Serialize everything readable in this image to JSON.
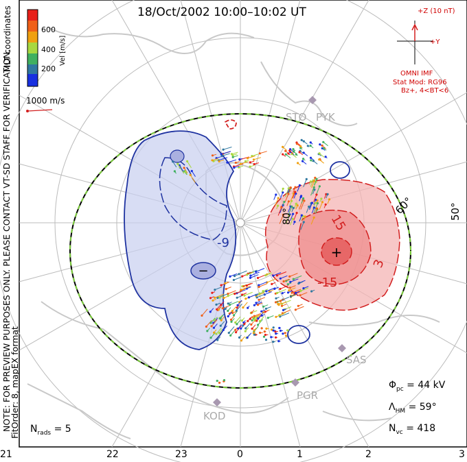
{
  "title": "18/Oct/2002 10:00–10:02 UT",
  "coord_label": "MLT coordinates",
  "colorbar": {
    "label": "Vel [m/s]",
    "ticks": [
      "600",
      "400",
      "200"
    ],
    "colors": [
      "#e8201a",
      "#f08010",
      "#f0c010",
      "#90d040",
      "#30a050",
      "#3070b0",
      "#1830e0"
    ]
  },
  "vector_scale": "1000 m/s",
  "notes": {
    "preview": "NOTE: FOR PREVIEW PURPOSES ONLY. PLEASE CONTACT VT-SD STAFF FOR VERIFICATION.",
    "fitorder": "FitOrder: 8, mapEX format"
  },
  "imf": {
    "z_label": "+Z (10 nT)",
    "y_label": "+Y",
    "source": "OMNI IMF",
    "model": "Stat Mod: RG96",
    "condition": "Bz+, 4<BT<6"
  },
  "lat_labels": [
    "80°",
    "60°",
    "50°"
  ],
  "contour_labels": [
    "-9",
    "15",
    "-15",
    "3"
  ],
  "extrema": {
    "min": "−",
    "max": "+"
  },
  "sites": [
    "STO",
    "PYK",
    "SAS",
    "PGR",
    "KOD"
  ],
  "stats": {
    "phi_pc": {
      "symbol": "Φ",
      "sub": "pc",
      "value": "= 44 kV"
    },
    "lambda_hm": {
      "symbol": "Λ",
      "sub": "HM",
      "value": "= 59°"
    },
    "n_vc": {
      "symbol": "N",
      "sub": "vc",
      "value": "= 418"
    },
    "n_rads": {
      "symbol": "N",
      "sub": "rads",
      "value": "= 5"
    }
  },
  "mlt_labels": [
    "21",
    "22",
    "23",
    "0",
    "1",
    "2",
    "3"
  ],
  "colors": {
    "positive": "#d21e1e",
    "negative": "#1e32a0",
    "boundary": "#000000",
    "boundary_dash": "#7ccd3c"
  }
}
